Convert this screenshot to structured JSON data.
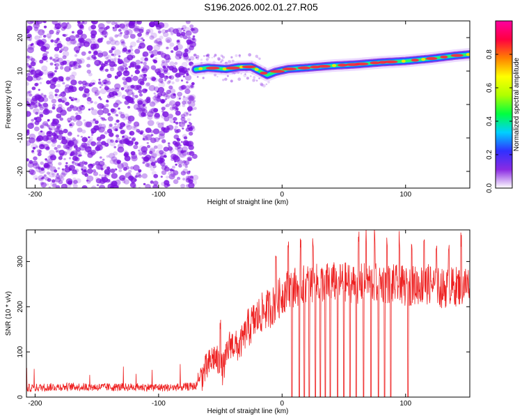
{
  "title": "S196.2026.002.01.27.R05",
  "colors": {
    "snr_line": "#ee2222",
    "noise": "#7a10e0",
    "background": "#ffffff",
    "axis": "#000000"
  },
  "chart_data": [
    {
      "type": "heatmap",
      "name": "spectrogram",
      "xlabel": "Height of straight line (km)",
      "ylabel": "Frequency (Hz)",
      "xlim": [
        -207,
        152
      ],
      "ylim": [
        -25,
        25
      ],
      "x_ticks": [
        -200,
        -100,
        0,
        100
      ],
      "x_tick_labels": [
        "-200",
        "-100",
        "0",
        "100"
      ],
      "y_ticks": [
        -20,
        -10,
        0,
        10,
        20
      ],
      "y_tick_labels": [
        "-20",
        "-10",
        "0",
        "10",
        "20"
      ],
      "noise_region_x": [
        -207,
        -70
      ],
      "signal_start_x": -70,
      "signal_ridge": {
        "x": [
          -70,
          -60,
          -45,
          -35,
          -25,
          -18,
          -12,
          -5,
          5,
          20,
          40,
          60,
          80,
          100,
          120,
          140,
          152
        ],
        "frequency": [
          10.5,
          11.0,
          10.6,
          11.2,
          11.3,
          10.0,
          8.8,
          9.8,
          10.6,
          11.0,
          11.6,
          12.0,
          12.6,
          13.0,
          13.7,
          14.6,
          15.0
        ]
      },
      "colorbar": {
        "label": "Normalized spectral amplitude",
        "range": [
          0,
          1
        ],
        "ticks": [
          0.0,
          0.2,
          0.4,
          0.6,
          0.8
        ],
        "tick_labels": [
          "0.0",
          "0.2",
          "0.4",
          "0.6",
          "0.8"
        ],
        "colors": [
          "#ffffff",
          "#8a2be2",
          "#3030ff",
          "#00d0ff",
          "#00ff40",
          "#b0ff00",
          "#ffff00",
          "#ff8000",
          "#ff0040",
          "#ff00a0"
        ]
      }
    },
    {
      "type": "line",
      "name": "snr",
      "xlabel": "Height of straight line (km)",
      "ylabel": "SNR (10 * v/v)",
      "xlim": [
        -207,
        152
      ],
      "ylim": [
        0,
        370
      ],
      "x_ticks": [
        -200,
        -100,
        0,
        100
      ],
      "x_tick_labels": [
        "-200",
        "-100",
        "0",
        "100"
      ],
      "y_ticks": [
        0,
        100,
        200,
        300
      ],
      "y_tick_labels": [
        "0",
        "100",
        "200",
        "300"
      ],
      "series": [
        {
          "name": "SNR",
          "x": [
            -207,
            -190,
            -170,
            -150,
            -130,
            -110,
            -90,
            -70,
            -62,
            -55,
            -48,
            -42,
            -35,
            -28,
            -22,
            -15,
            -8,
            -2,
            5,
            12,
            20,
            30,
            40,
            50,
            60,
            70,
            80,
            90,
            100,
            110,
            120,
            130,
            140,
            152
          ],
          "values": [
            20,
            22,
            23,
            22,
            22,
            22,
            21,
            24,
            60,
            90,
            60,
            120,
            110,
            150,
            170,
            190,
            200,
            220,
            240,
            245,
            250,
            252,
            255,
            255,
            250,
            255,
            252,
            250,
            245,
            248,
            250,
            240,
            245,
            250
          ]
        }
      ],
      "dropouts_x": [
        8,
        14,
        18,
        22,
        27,
        31,
        35,
        39,
        45,
        50,
        55,
        60,
        66,
        72,
        78,
        83,
        88,
        102
      ],
      "spikes_x": [
        -50,
        -5,
        5,
        15,
        25,
        35,
        45,
        55,
        62,
        68,
        75,
        85,
        95,
        105,
        115,
        125,
        135,
        145
      ]
    }
  ]
}
